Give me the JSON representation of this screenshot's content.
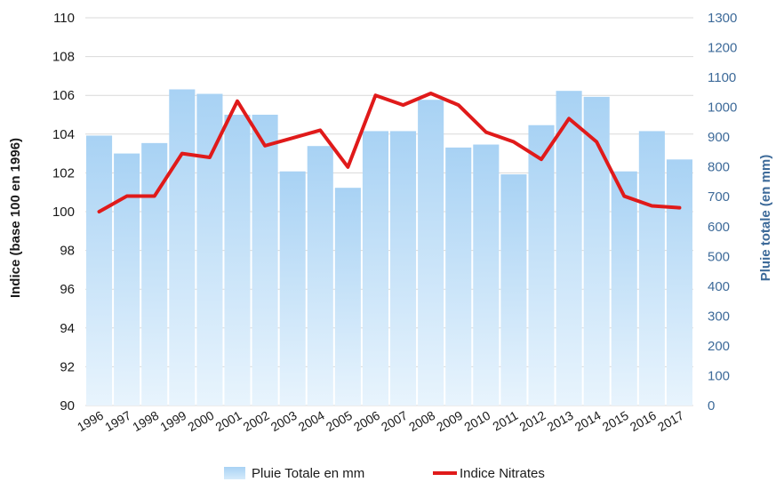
{
  "chart_data": {
    "type": "bar+line",
    "categories": [
      "1996",
      "1997",
      "1998",
      "1999",
      "2000",
      "2001",
      "2002",
      "2003",
      "2004",
      "2005",
      "2006",
      "2007",
      "2008",
      "2009",
      "2010",
      "2011",
      "2012",
      "2013",
      "2014",
      "2015",
      "2016",
      "2017"
    ],
    "series": [
      {
        "name": "Pluie Totale en mm",
        "type": "bar",
        "axis": "right",
        "values": [
          905,
          845,
          880,
          1060,
          1045,
          975,
          975,
          785,
          870,
          730,
          920,
          920,
          1025,
          865,
          875,
          775,
          940,
          1055,
          1035,
          785,
          920,
          825
        ]
      },
      {
        "name": "Indice Nitrates",
        "type": "line",
        "axis": "left",
        "values": [
          100.0,
          100.8,
          100.8,
          103.0,
          102.8,
          105.7,
          103.4,
          103.8,
          104.2,
          102.3,
          106.0,
          105.5,
          106.1,
          105.5,
          104.1,
          103.6,
          102.7,
          104.8,
          103.6,
          100.8,
          100.3,
          100.2
        ]
      }
    ],
    "ylabel": "Indice (base 100 en 1996)",
    "y2label": "Pluie totale (en mm)",
    "ylim": [
      90,
      110
    ],
    "y2lim": [
      0,
      1300
    ],
    "yticks": [
      "90",
      "92",
      "94",
      "96",
      "98",
      "100",
      "102",
      "104",
      "106",
      "108",
      "110"
    ],
    "y2ticks": [
      "0",
      "100",
      "200",
      "300",
      "400",
      "500",
      "600",
      "700",
      "800",
      "900",
      "1000",
      "1100",
      "1200",
      "1300"
    ],
    "grid": true,
    "legend_position": "bottom",
    "colors": {
      "bar": "#aad4f5",
      "bar_light": "#e6f3fd",
      "line": "#e01a1a",
      "grid": "#d9d9d9",
      "right_axis": "#3d6a99"
    }
  }
}
